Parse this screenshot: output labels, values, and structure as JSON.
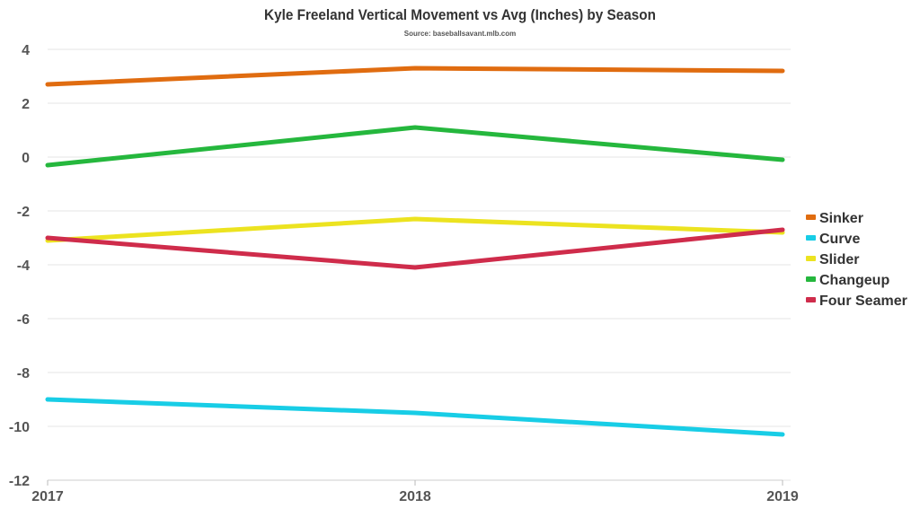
{
  "chart_data": {
    "type": "line",
    "title": "Kyle Freeland Vertical Movement vs Avg (Inches) by Season",
    "subtitle": "Source: baseballsavant.mlb.com",
    "xlabel": "",
    "ylabel": "",
    "categories": [
      "2017",
      "2018",
      "2019"
    ],
    "ylim": [
      -12,
      4
    ],
    "yticks": [
      "4",
      "2",
      "0",
      "-2",
      "-4",
      "-6",
      "-8",
      "-10",
      "-12"
    ],
    "grid": true,
    "legend_position": "right",
    "series": [
      {
        "name": "Sinker",
        "color": "#e06c10",
        "values": [
          2.7,
          3.3,
          3.2
        ]
      },
      {
        "name": "Curve",
        "color": "#18cde6",
        "values": [
          -9.0,
          -9.5,
          -10.3
        ]
      },
      {
        "name": "Slider",
        "color": "#ece320",
        "values": [
          -3.1,
          -2.3,
          -2.8
        ]
      },
      {
        "name": "Changeup",
        "color": "#25b73d",
        "values": [
          -0.3,
          1.1,
          -0.1
        ]
      },
      {
        "name": "Four Seamer",
        "color": "#cf2c4b",
        "values": [
          -3.0,
          -4.1,
          -2.7
        ]
      }
    ],
    "draw_order": [
      "Curve",
      "Slider",
      "Four Seamer",
      "Changeup",
      "Sinker"
    ]
  }
}
